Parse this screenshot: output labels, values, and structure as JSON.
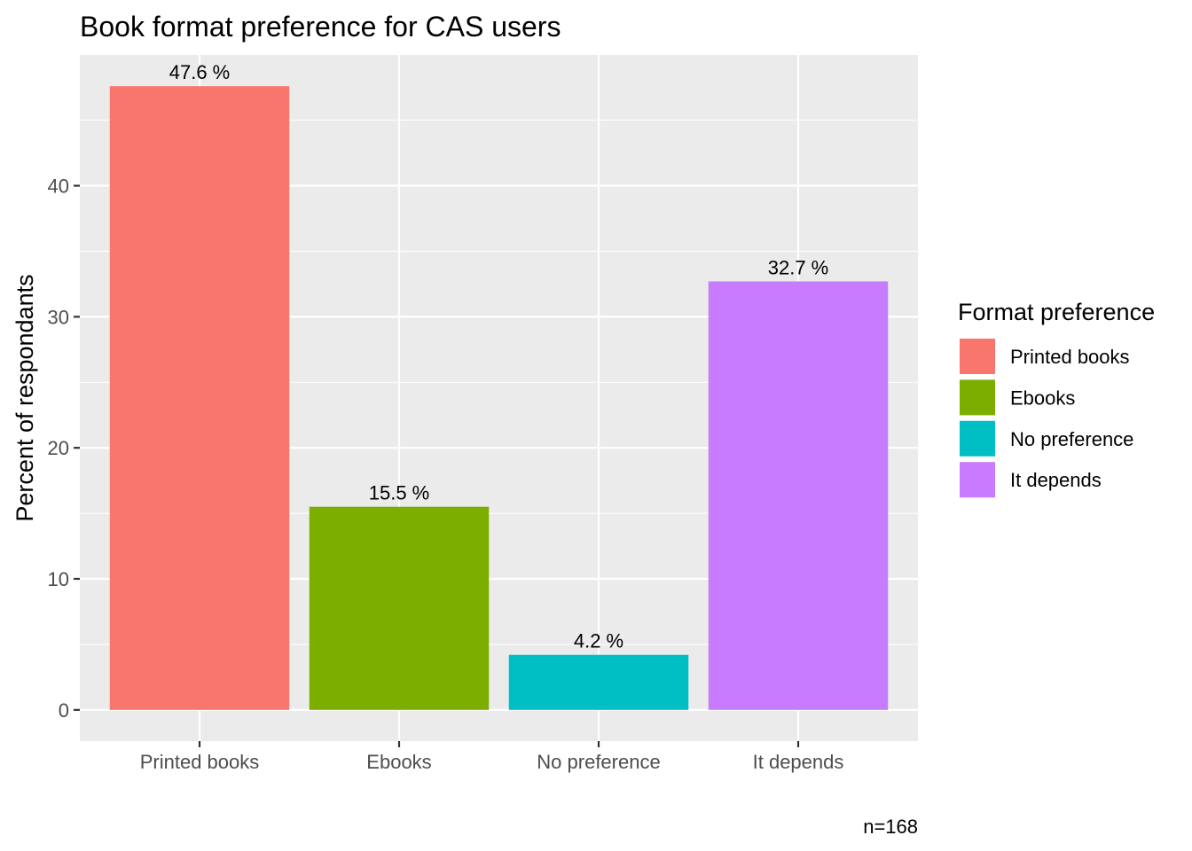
{
  "chart_data": {
    "type": "bar",
    "title": "Book format preference for CAS users",
    "xlabel": "",
    "ylabel": "Percent of respondants",
    "categories": [
      "Printed books",
      "Ebooks",
      "No preference",
      "It depends"
    ],
    "values": [
      47.6,
      15.5,
      4.2,
      32.7
    ],
    "data_labels": [
      "47.6 %",
      "15.5 %",
      "4.2 %",
      "32.7 %"
    ],
    "colors": [
      "#F8766D",
      "#7CAE00",
      "#00BFC4",
      "#C77CFF"
    ],
    "y_ticks": [
      0,
      10,
      20,
      30,
      40
    ],
    "ylim": [
      -2.38,
      49.98
    ],
    "grid": true,
    "panel_background": "#EBEBEB",
    "legend": {
      "title": "Format preference",
      "placement": "right",
      "items": [
        "Printed books",
        "Ebooks",
        "No preference",
        "It depends"
      ]
    },
    "caption": "n=168"
  }
}
